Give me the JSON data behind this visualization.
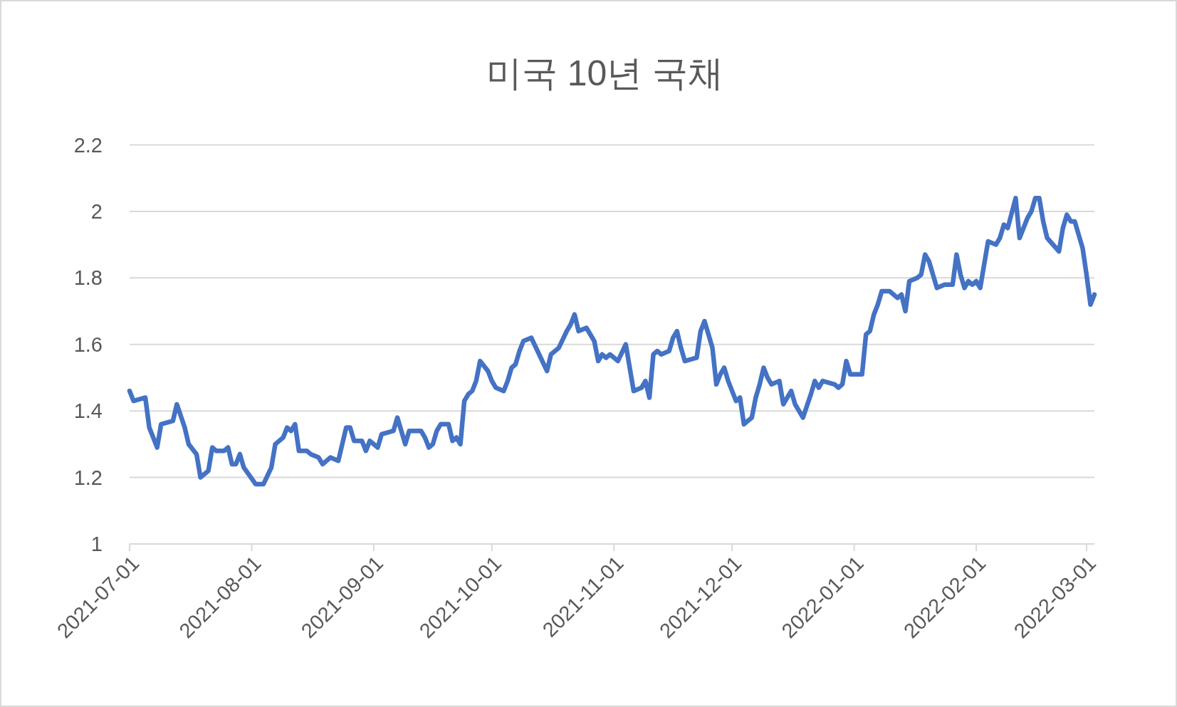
{
  "chart_data": {
    "type": "line",
    "title": "미국 10년 국채",
    "color": "#4472c4",
    "grid": "y",
    "line_style": "solid",
    "xlim": [
      "2021-07-01",
      "2022-03-03"
    ],
    "xticks": [
      "2021-07-01",
      "2021-08-01",
      "2021-09-01",
      "2021-10-01",
      "2021-11-01",
      "2021-12-01",
      "2022-01-01",
      "2022-02-01",
      "2022-03-01"
    ],
    "ylim": [
      1,
      2.2
    ],
    "yticks": [
      1,
      1.2,
      1.4,
      1.6,
      1.8,
      2,
      2.2
    ],
    "x": [
      "2021-07-01",
      "2021-07-02",
      "2021-07-05",
      "2021-07-06",
      "2021-07-08",
      "2021-07-09",
      "2021-07-12",
      "2021-07-13",
      "2021-07-15",
      "2021-07-16",
      "2021-07-18",
      "2021-07-19",
      "2021-07-21",
      "2021-07-22",
      "2021-07-23",
      "2021-07-25",
      "2021-07-26",
      "2021-07-27",
      "2021-07-28",
      "2021-07-29",
      "2021-07-30",
      "2021-08-02",
      "2021-08-04",
      "2021-08-06",
      "2021-08-07",
      "2021-08-09",
      "2021-08-10",
      "2021-08-11",
      "2021-08-12",
      "2021-08-13",
      "2021-08-15",
      "2021-08-16",
      "2021-08-18",
      "2021-08-19",
      "2021-08-21",
      "2021-08-23",
      "2021-08-25",
      "2021-08-26",
      "2021-08-27",
      "2021-08-29",
      "2021-08-30",
      "2021-08-31",
      "2021-09-02",
      "2021-09-03",
      "2021-09-06",
      "2021-09-07",
      "2021-09-09",
      "2021-09-10",
      "2021-09-13",
      "2021-09-14",
      "2021-09-15",
      "2021-09-16",
      "2021-09-17",
      "2021-09-18",
      "2021-09-20",
      "2021-09-21",
      "2021-09-22",
      "2021-09-23",
      "2021-09-24",
      "2021-09-25",
      "2021-09-26",
      "2021-09-27",
      "2021-09-28",
      "2021-09-30",
      "2021-10-01",
      "2021-10-02",
      "2021-10-04",
      "2021-10-05",
      "2021-10-06",
      "2021-10-07",
      "2021-10-08",
      "2021-10-09",
      "2021-10-11",
      "2021-10-13",
      "2021-10-15",
      "2021-10-16",
      "2021-10-18",
      "2021-10-20",
      "2021-10-21",
      "2021-10-22",
      "2021-10-23",
      "2021-10-25",
      "2021-10-26",
      "2021-10-27",
      "2021-10-28",
      "2021-10-29",
      "2021-10-30",
      "2021-10-31",
      "2021-11-02",
      "2021-11-04",
      "2021-11-06",
      "2021-11-08",
      "2021-11-09",
      "2021-11-10",
      "2021-11-11",
      "2021-11-12",
      "2021-11-13",
      "2021-11-15",
      "2021-11-16",
      "2021-11-17",
      "2021-11-18",
      "2021-11-19",
      "2021-11-22",
      "2021-11-23",
      "2021-11-24",
      "2021-11-25",
      "2021-11-26",
      "2021-11-27",
      "2021-11-28",
      "2021-11-29",
      "2021-11-30",
      "2021-12-02",
      "2021-12-03",
      "2021-12-04",
      "2021-12-06",
      "2021-12-07",
      "2021-12-08",
      "2021-12-09",
      "2021-12-10",
      "2021-12-11",
      "2021-12-13",
      "2021-12-14",
      "2021-12-16",
      "2021-12-17",
      "2021-12-19",
      "2021-12-21",
      "2021-12-22",
      "2021-12-23",
      "2021-12-24",
      "2021-12-27",
      "2021-12-28",
      "2021-12-29",
      "2021-12-30",
      "2021-12-31",
      "2022-01-03",
      "2022-01-04",
      "2022-01-05",
      "2022-01-06",
      "2022-01-07",
      "2022-01-08",
      "2022-01-10",
      "2022-01-12",
      "2022-01-13",
      "2022-01-14",
      "2022-01-15",
      "2022-01-17",
      "2022-01-18",
      "2022-01-19",
      "2022-01-20",
      "2022-01-22",
      "2022-01-24",
      "2022-01-26",
      "2022-01-27",
      "2022-01-28",
      "2022-01-29",
      "2022-01-30",
      "2022-01-31",
      "2022-02-01",
      "2022-02-02",
      "2022-02-03",
      "2022-02-04",
      "2022-02-06",
      "2022-02-07",
      "2022-02-08",
      "2022-02-09",
      "2022-02-11",
      "2022-02-12",
      "2022-02-14",
      "2022-02-15",
      "2022-02-16",
      "2022-02-17",
      "2022-02-18",
      "2022-02-19",
      "2022-02-22",
      "2022-02-23",
      "2022-02-24",
      "2022-02-25",
      "2022-02-26",
      "2022-02-28",
      "2022-03-01",
      "2022-03-02",
      "2022-03-03"
    ],
    "values": [
      1.46,
      1.43,
      1.44,
      1.35,
      1.29,
      1.36,
      1.37,
      1.42,
      1.35,
      1.3,
      1.27,
      1.2,
      1.22,
      1.29,
      1.28,
      1.28,
      1.29,
      1.24,
      1.24,
      1.27,
      1.23,
      1.18,
      1.18,
      1.23,
      1.3,
      1.32,
      1.35,
      1.34,
      1.36,
      1.28,
      1.28,
      1.27,
      1.26,
      1.24,
      1.26,
      1.25,
      1.35,
      1.35,
      1.31,
      1.31,
      1.28,
      1.31,
      1.29,
      1.33,
      1.34,
      1.38,
      1.3,
      1.34,
      1.34,
      1.32,
      1.29,
      1.3,
      1.34,
      1.36,
      1.36,
      1.31,
      1.32,
      1.3,
      1.43,
      1.45,
      1.46,
      1.49,
      1.55,
      1.52,
      1.49,
      1.47,
      1.46,
      1.49,
      1.53,
      1.54,
      1.58,
      1.61,
      1.62,
      1.57,
      1.52,
      1.57,
      1.59,
      1.64,
      1.66,
      1.69,
      1.64,
      1.65,
      1.63,
      1.61,
      1.55,
      1.57,
      1.56,
      1.57,
      1.55,
      1.6,
      1.46,
      1.47,
      1.49,
      1.44,
      1.57,
      1.58,
      1.57,
      1.58,
      1.62,
      1.64,
      1.59,
      1.55,
      1.56,
      1.64,
      1.67,
      1.63,
      1.59,
      1.48,
      1.51,
      1.53,
      1.49,
      1.43,
      1.44,
      1.36,
      1.38,
      1.44,
      1.48,
      1.53,
      1.5,
      1.48,
      1.49,
      1.42,
      1.46,
      1.42,
      1.38,
      1.45,
      1.49,
      1.47,
      1.49,
      1.48,
      1.47,
      1.48,
      1.55,
      1.51,
      1.51,
      1.63,
      1.64,
      1.69,
      1.72,
      1.76,
      1.76,
      1.74,
      1.75,
      1.7,
      1.79,
      1.8,
      1.81,
      1.87,
      1.85,
      1.77,
      1.78,
      1.78,
      1.87,
      1.81,
      1.77,
      1.79,
      1.78,
      1.79,
      1.77,
      1.84,
      1.91,
      1.9,
      1.92,
      1.96,
      1.95,
      2.04,
      1.92,
      1.98,
      2.0,
      2.04,
      2.04,
      1.97,
      1.92,
      1.88,
      1.95,
      1.99,
      1.97,
      1.97,
      1.89,
      1.81,
      1.72,
      1.75
    ]
  }
}
